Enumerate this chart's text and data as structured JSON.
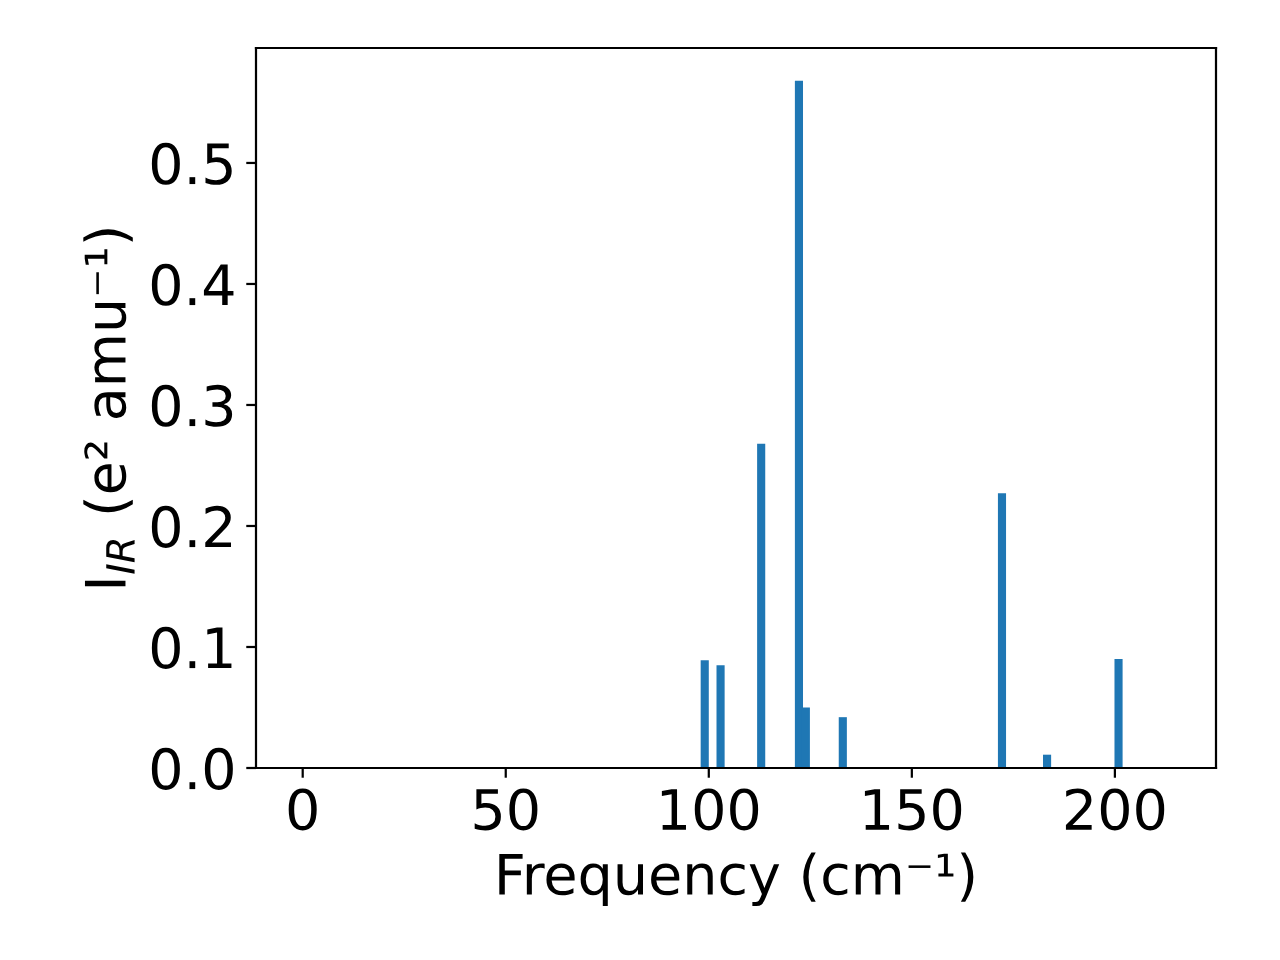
{
  "chart_data": {
    "type": "bar",
    "xlabel": "Frequency (cm⁻¹)",
    "ylabel": "I$_{IR}$ (e² amu⁻¹)",
    "x": [
      99.0,
      102.9,
      112.9,
      122.2,
      123.9,
      133.0,
      172.2,
      183.3,
      200.9
    ],
    "values": [
      0.089,
      0.085,
      0.268,
      0.568,
      0.05,
      0.042,
      0.227,
      0.011,
      0.09
    ],
    "color": "#1f77b4",
    "xlim": [
      -11.5,
      224.9
    ],
    "xticks": [
      0,
      50,
      100,
      150,
      200
    ],
    "ylim": [
      0,
      0.595
    ],
    "yticks": [
      {
        "value": 0,
        "label": "0.0"
      },
      0.1,
      0.2,
      0.3,
      0.4,
      0.5
    ],
    "grid": false,
    "legend": false
  }
}
